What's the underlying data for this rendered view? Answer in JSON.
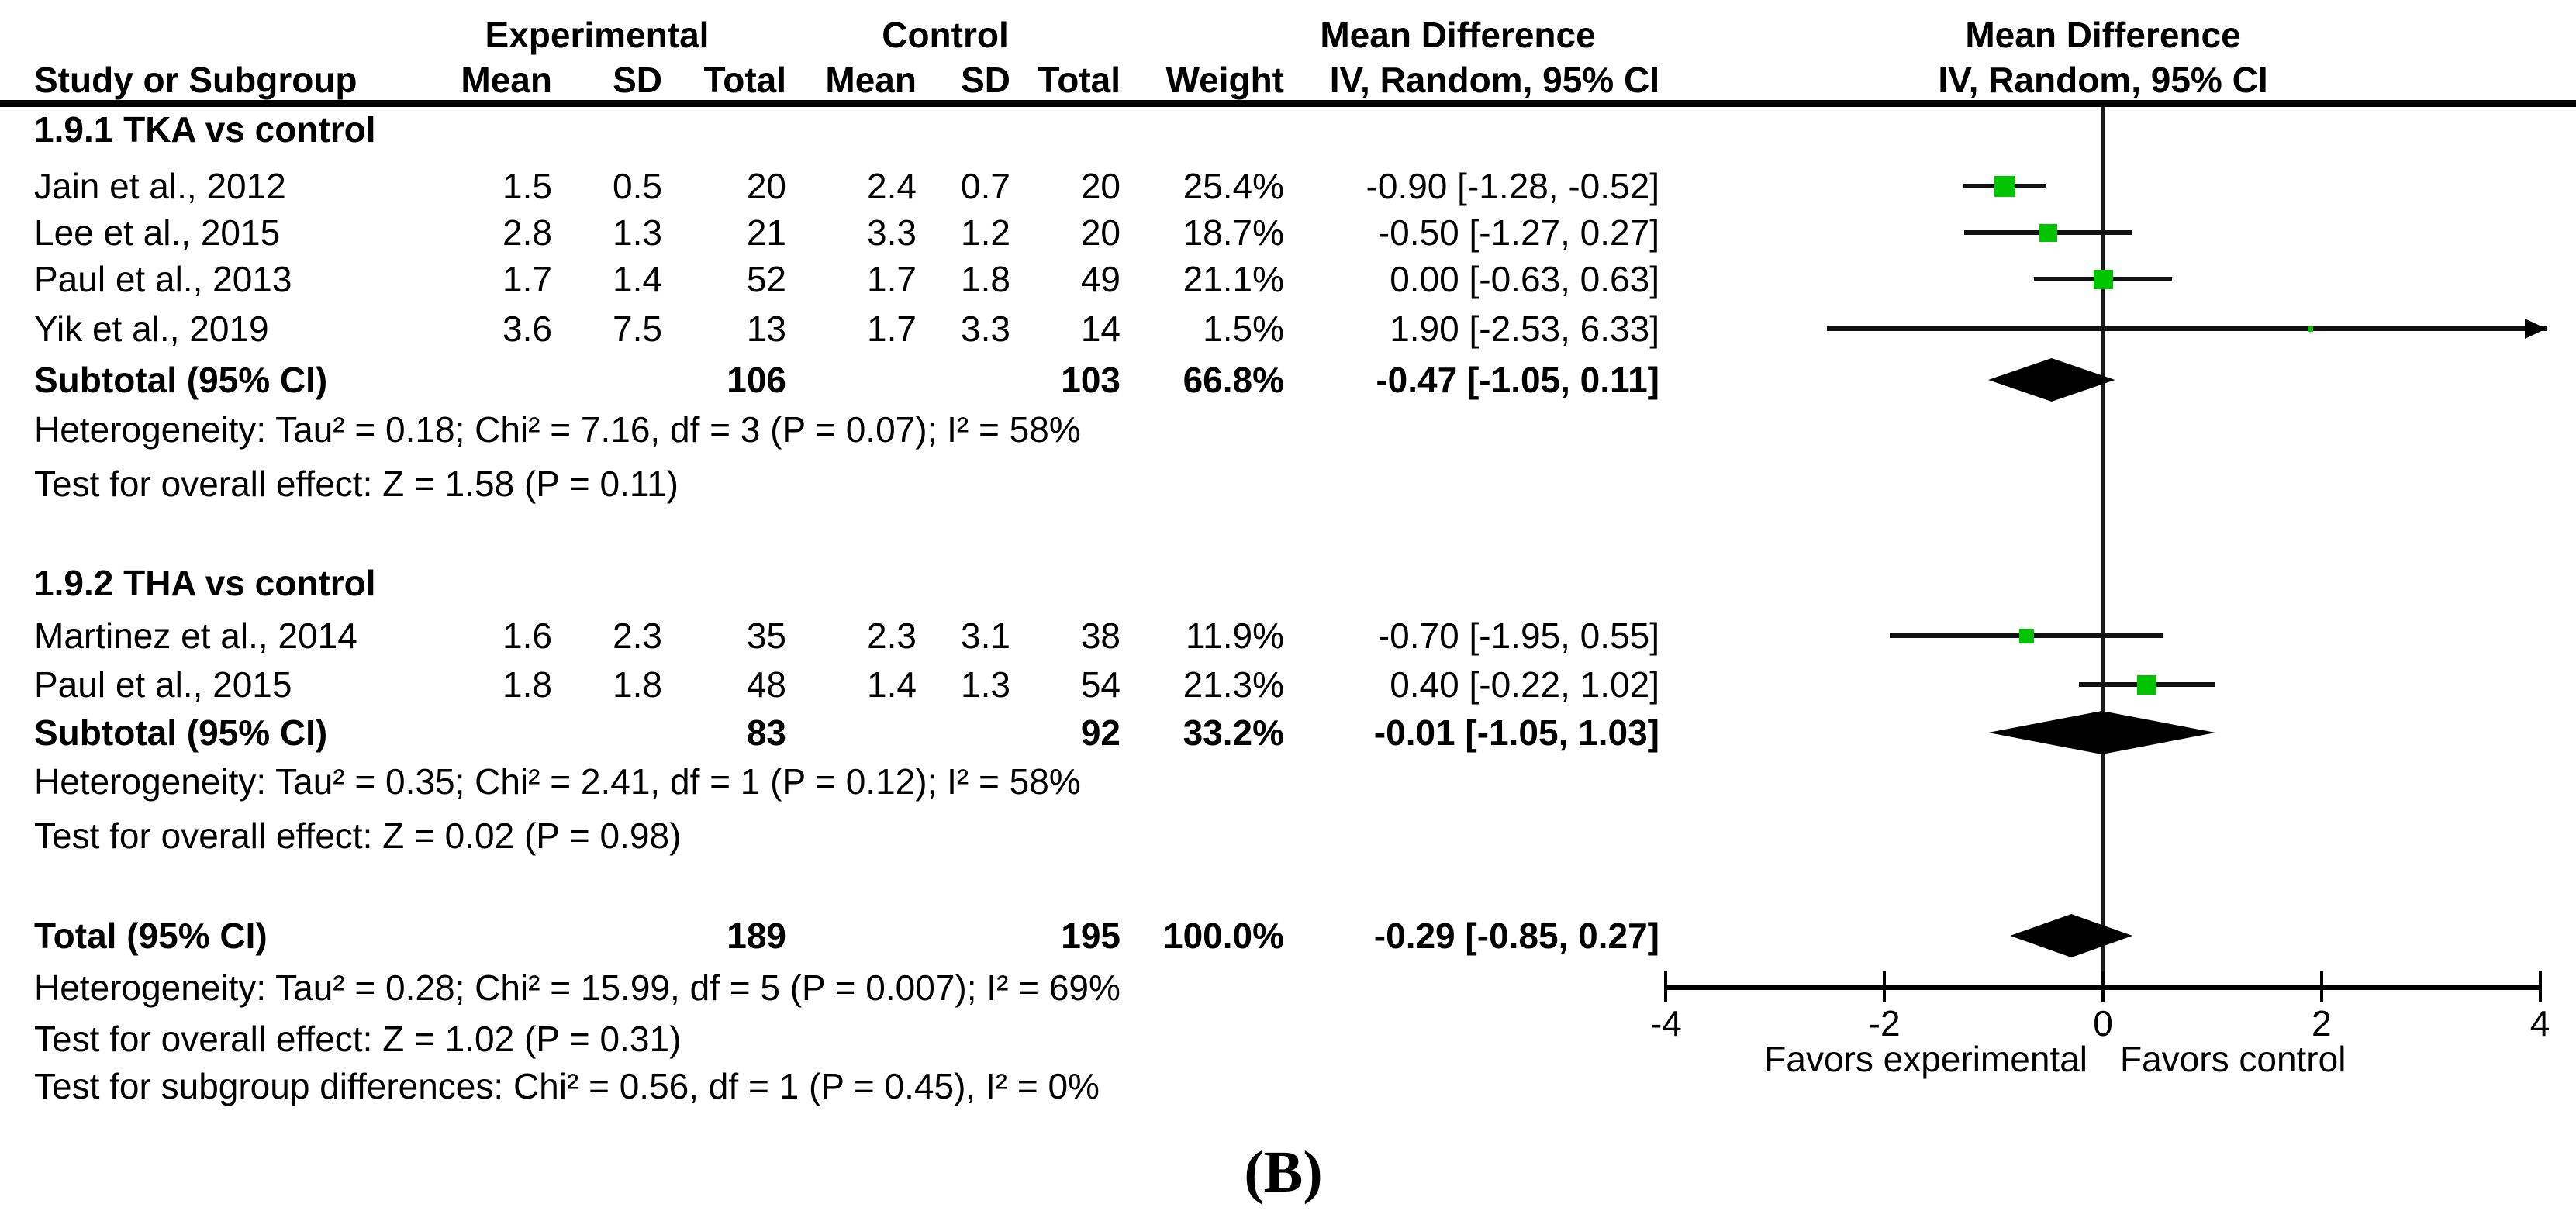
{
  "header": {
    "group_experimental": "Experimental",
    "group_control": "Control",
    "md_left": "Mean Difference",
    "md_right": "Mean Difference",
    "study": "Study or Subgroup",
    "mean": "Mean",
    "sd": "SD",
    "total": "Total",
    "weight": "Weight",
    "iv_left": "IV, Random, 95% CI",
    "iv_right": "IV, Random, 95% CI"
  },
  "caption": "(B)",
  "colors": {
    "marker_green": "#00c400",
    "line_black": "#000000"
  },
  "chart_data": {
    "type": "scatter",
    "subtype": "forest-plot",
    "effect_measure": "Mean Difference IV, Random, 95% CI",
    "x_axis": {
      "min": -4,
      "max": 4,
      "ticks": [
        -4,
        -2,
        0,
        2,
        4
      ],
      "favors_left": "Favors experimental",
      "favors_right": "Favors control"
    },
    "rows": [
      {
        "id": "g1",
        "kind": "subgroup",
        "label": "1.9.1 TKA vs control"
      },
      {
        "id": "jain",
        "kind": "study",
        "label": "Jain et al., 2012",
        "e_mean": "1.5",
        "e_sd": "0.5",
        "e_total": "20",
        "c_mean": "2.4",
        "c_sd": "0.7",
        "c_total": "20",
        "weight": "25.4%",
        "ci": "-0.90 [-1.28, -0.52]",
        "est": -0.9,
        "lo": -1.28,
        "hi": -0.52,
        "w": 25.4
      },
      {
        "id": "lee",
        "kind": "study",
        "label": "Lee et al., 2015",
        "e_mean": "2.8",
        "e_sd": "1.3",
        "e_total": "21",
        "c_mean": "3.3",
        "c_sd": "1.2",
        "c_total": "20",
        "weight": "18.7%",
        "ci": "-0.50 [-1.27, 0.27]",
        "est": -0.5,
        "lo": -1.27,
        "hi": 0.27,
        "w": 18.7
      },
      {
        "id": "paul2013",
        "kind": "study",
        "label": "Paul et al., 2013",
        "e_mean": "1.7",
        "e_sd": "1.4",
        "e_total": "52",
        "c_mean": "1.7",
        "c_sd": "1.8",
        "c_total": "49",
        "weight": "21.1%",
        "ci": "0.00 [-0.63, 0.63]",
        "est": 0.0,
        "lo": -0.63,
        "hi": 0.63,
        "w": 21.1
      },
      {
        "id": "yik",
        "kind": "study",
        "label": "Yik et al., 2019",
        "e_mean": "3.6",
        "e_sd": "7.5",
        "e_total": "13",
        "c_mean": "1.7",
        "c_sd": "3.3",
        "c_total": "14",
        "weight": "1.5%",
        "ci": "1.90 [-2.53, 6.33]",
        "est": 1.9,
        "lo": -2.53,
        "hi": 6.33,
        "w": 1.5,
        "arrow_right": true
      },
      {
        "id": "sub1",
        "kind": "subtotal",
        "label": "Subtotal (95% CI)",
        "e_total": "106",
        "c_total": "103",
        "weight": "66.8%",
        "ci": "-0.47 [-1.05, 0.11]",
        "est": -0.47,
        "lo": -1.05,
        "hi": 0.11
      },
      {
        "id": "het1",
        "kind": "note",
        "label": "Heterogeneity: Tau² = 0.18; Chi² = 7.16, df = 3 (P = 0.07); I² = 58%"
      },
      {
        "id": "test1",
        "kind": "note",
        "label": "Test for overall effect: Z = 1.58 (P = 0.11)"
      },
      {
        "id": "g2",
        "kind": "subgroup",
        "label": "1.9.2 THA vs control"
      },
      {
        "id": "martinez",
        "kind": "study",
        "label": "Martinez et al., 2014",
        "e_mean": "1.6",
        "e_sd": "2.3",
        "e_total": "35",
        "c_mean": "2.3",
        "c_sd": "3.1",
        "c_total": "38",
        "weight": "11.9%",
        "ci": "-0.70 [-1.95, 0.55]",
        "est": -0.7,
        "lo": -1.95,
        "hi": 0.55,
        "w": 11.9
      },
      {
        "id": "paul2015",
        "kind": "study",
        "label": "Paul et al., 2015",
        "e_mean": "1.8",
        "e_sd": "1.8",
        "e_total": "48",
        "c_mean": "1.4",
        "c_sd": "1.3",
        "c_total": "54",
        "weight": "21.3%",
        "ci": "0.40 [-0.22, 1.02]",
        "est": 0.4,
        "lo": -0.22,
        "hi": 1.02,
        "w": 21.3
      },
      {
        "id": "sub2",
        "kind": "subtotal",
        "label": "Subtotal (95% CI)",
        "e_total": "83",
        "c_total": "92",
        "weight": "33.2%",
        "ci": "-0.01 [-1.05, 1.03]",
        "est": -0.01,
        "lo": -1.05,
        "hi": 1.03
      },
      {
        "id": "het2",
        "kind": "note",
        "label": "Heterogeneity: Tau² = 0.35; Chi² = 2.41, df = 1 (P = 0.12); I² = 58%"
      },
      {
        "id": "test2",
        "kind": "note",
        "label": "Test for overall effect: Z = 0.02 (P = 0.98)"
      },
      {
        "id": "total",
        "kind": "total",
        "label": "Total (95% CI)",
        "e_total": "189",
        "c_total": "195",
        "weight": "100.0%",
        "ci": "-0.29 [-0.85, 0.27]",
        "est": -0.29,
        "lo": -0.85,
        "hi": 0.27
      },
      {
        "id": "het_total",
        "kind": "note",
        "label": "Heterogeneity: Tau² = 0.28; Chi² = 15.99, df = 5 (P = 0.007); I² = 69%"
      },
      {
        "id": "test_total",
        "kind": "note",
        "label": "Test for overall effect: Z = 1.02 (P = 0.31)"
      },
      {
        "id": "test_subgroup",
        "kind": "note",
        "label": "Test for subgroup differences: Chi² = 0.56, df = 1 (P = 0.45), I² = 0%"
      }
    ]
  }
}
